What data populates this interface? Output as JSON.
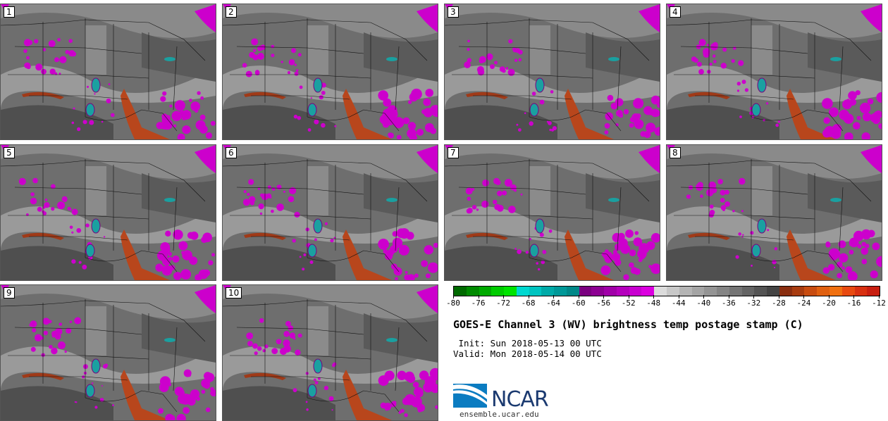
{
  "panels": [
    {
      "label": "1"
    },
    {
      "label": "2"
    },
    {
      "label": "3"
    },
    {
      "label": "4"
    },
    {
      "label": "5"
    },
    {
      "label": "6"
    },
    {
      "label": "7"
    },
    {
      "label": "8"
    },
    {
      "label": "9"
    },
    {
      "label": "10"
    }
  ],
  "colorbar": {
    "colors": [
      "#006a00",
      "#008a00",
      "#00aa00",
      "#00cc00",
      "#00e400",
      "#00d8d0",
      "#00c4c0",
      "#00aaa8",
      "#009898",
      "#008888",
      "#7a0080",
      "#8c0092",
      "#a000a8",
      "#b400bc",
      "#c800d0",
      "#dc00e0",
      "#dcdcdc",
      "#c8c8c8",
      "#b4b4b4",
      "#a4a4a4",
      "#949494",
      "#848484",
      "#747474",
      "#646464",
      "#545454",
      "#444444",
      "#8a2e10",
      "#a83c10",
      "#c84c10",
      "#e06010",
      "#f07010",
      "#e84a10",
      "#d83010",
      "#c81e10"
    ],
    "ticks": [
      "-80",
      "-76",
      "-72",
      "-68",
      "-64",
      "-60",
      "-56",
      "-52",
      "-48",
      "-44",
      "-40",
      "-36",
      "-32",
      "-28",
      "-24",
      "-20",
      "-16",
      "-12"
    ]
  },
  "title": "GOES-E Channel 3 (WV) brightness temp postage stamp (C)",
  "init": " Init: Sun 2018-05-13 00 UTC",
  "valid": "Valid: Mon 2018-05-14 00 UTC",
  "logo": {
    "text": "NCAR",
    "url": "ensemble.ucar.edu"
  }
}
